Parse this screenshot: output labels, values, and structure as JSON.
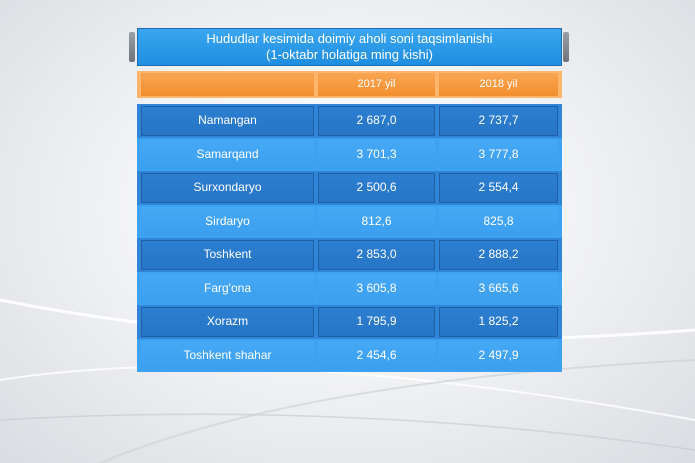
{
  "chart_data": {
    "type": "table",
    "title_line1": "Hududlar kesimida doimiy aholi soni taqsimlanishi",
    "title_line2": "(1-oktabr holatiga ming kishi)",
    "columns": [
      "",
      "2017 yil",
      "2018 yil"
    ],
    "rows": [
      {
        "region": "Namangan",
        "y2017": "2 687,0",
        "y2018": "2 737,7"
      },
      {
        "region": "Samarqand",
        "y2017": "3 701,3",
        "y2018": "3 777,8"
      },
      {
        "region": "Surxondaryo",
        "y2017": "2 500,6",
        "y2018": "2 554,4"
      },
      {
        "region": "Sirdaryo",
        "y2017": "812,6",
        "y2018": "825,8"
      },
      {
        "region": "Toshkent",
        "y2017": "2 853,0",
        "y2018": "2 888,2"
      },
      {
        "region": "Farg'ona",
        "y2017": "3 605,8",
        "y2018": "3 665,6"
      },
      {
        "region": "Xorazm",
        "y2017": "1 795,9",
        "y2018": "1 825,2"
      },
      {
        "region": "Toshkent shahar",
        "y2017": "2 454,6",
        "y2018": "2 497,9"
      }
    ]
  }
}
